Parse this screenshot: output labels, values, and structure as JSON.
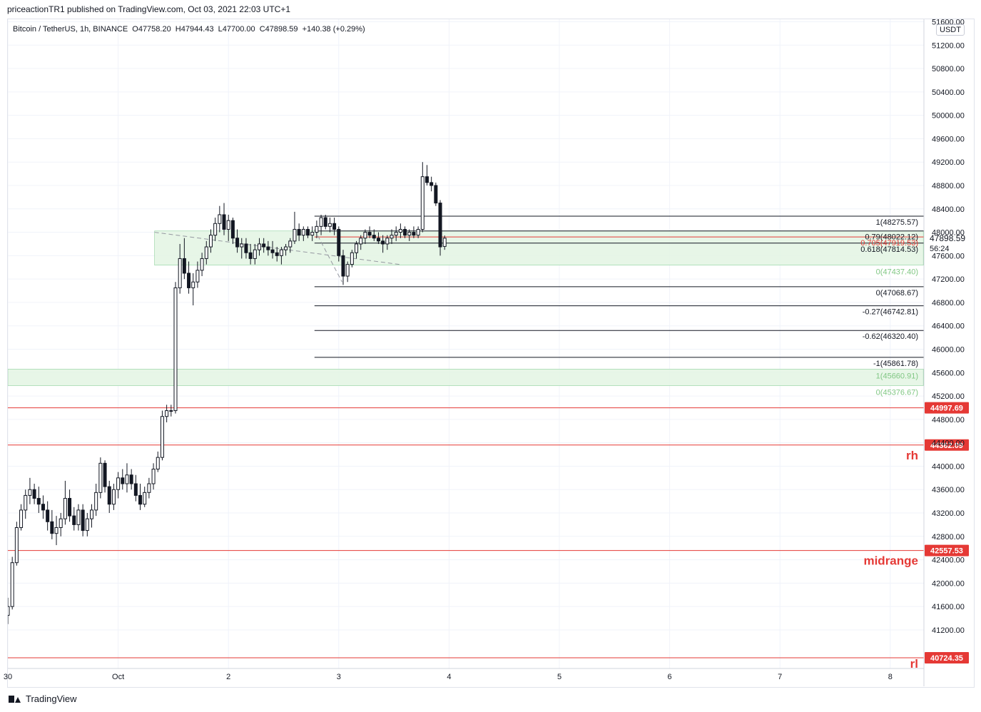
{
  "header": {
    "published": "priceactionTR1 published on TradingView.com, Oct 03, 2021 22:03 UTC+1"
  },
  "legend": {
    "symbol": "Bitcoin / TetherUS, 1h, BINANCE",
    "open": "O47758.20",
    "high": "H47944.43",
    "low": "L47700.00",
    "close": "C47898.59",
    "change": "+140.38 (+0.29%)"
  },
  "currency_badge": "USDT",
  "footer": {
    "brand": "TradingView"
  },
  "colors": {
    "up": "#131722",
    "down": "#131722",
    "zone_fill": "#e3f4e3",
    "zone_stroke": "#8fd19e",
    "red_level": "#e53935",
    "fib_text_green": "#81c784",
    "grid": "#f0f3fa"
  },
  "chart_data": {
    "type": "candlestick",
    "ylim": [
      40724.35,
      51600
    ],
    "xlim": [
      0,
      8.3
    ],
    "y_ticks": [
      41200,
      41600,
      42000,
      42400,
      42800,
      43200,
      43600,
      44000,
      44400,
      44800,
      45200,
      45600,
      46000,
      46400,
      46800,
      47200,
      47600,
      48000,
      48400,
      48800,
      49200,
      49600,
      50000,
      50400,
      50800,
      51200,
      51600
    ],
    "y_tick_labels": [
      "41200.00",
      "41600.00",
      "42000.00",
      "42400.00",
      "42800.00",
      "43200.00",
      "43600.00",
      "44000.00",
      "44400.00",
      "44800.00",
      "45200.00",
      "45600.00",
      "46000.00",
      "46400.00",
      "46800.00",
      "47200.00",
      "47600.00",
      "48000.00",
      "48400.00",
      "48800.00",
      "49200.00",
      "49600.00",
      "50000.00",
      "50400.00",
      "50800.00",
      "51200.00",
      "51600.00"
    ],
    "x_ticks": [
      {
        "x": 0,
        "label": "30"
      },
      {
        "x": 1,
        "label": "Oct"
      },
      {
        "x": 2,
        "label": "2"
      },
      {
        "x": 3,
        "label": "3"
      },
      {
        "x": 4,
        "label": "4"
      },
      {
        "x": 5,
        "label": "5"
      },
      {
        "x": 6,
        "label": "6"
      },
      {
        "x": 7,
        "label": "7"
      },
      {
        "x": 8,
        "label": "8"
      }
    ],
    "candles": [
      {
        "t": 0.0,
        "o": 41450,
        "h": 41750,
        "l": 41300,
        "c": 41600
      },
      {
        "t": 0.04,
        "o": 41600,
        "h": 42450,
        "l": 41550,
        "c": 42350
      },
      {
        "t": 0.08,
        "o": 42350,
        "h": 43050,
        "l": 42300,
        "c": 42950
      },
      {
        "t": 0.12,
        "o": 42950,
        "h": 43350,
        "l": 42900,
        "c": 43250
      },
      {
        "t": 0.16,
        "o": 43250,
        "h": 43600,
        "l": 43100,
        "c": 43500
      },
      {
        "t": 0.2,
        "o": 43500,
        "h": 43800,
        "l": 43350,
        "c": 43600
      },
      {
        "t": 0.24,
        "o": 43600,
        "h": 43700,
        "l": 43350,
        "c": 43450
      },
      {
        "t": 0.28,
        "o": 43450,
        "h": 43650,
        "l": 43200,
        "c": 43350
      },
      {
        "t": 0.32,
        "o": 43350,
        "h": 43500,
        "l": 43100,
        "c": 43250
      },
      {
        "t": 0.36,
        "o": 43250,
        "h": 43400,
        "l": 42900,
        "c": 43050
      },
      {
        "t": 0.4,
        "o": 43050,
        "h": 43250,
        "l": 42750,
        "c": 42850
      },
      {
        "t": 0.44,
        "o": 42850,
        "h": 43150,
        "l": 42650,
        "c": 42950
      },
      {
        "t": 0.48,
        "o": 42950,
        "h": 43200,
        "l": 42800,
        "c": 43100
      },
      {
        "t": 0.52,
        "o": 43100,
        "h": 43750,
        "l": 43000,
        "c": 43450
      },
      {
        "t": 0.56,
        "o": 43450,
        "h": 43600,
        "l": 43050,
        "c": 43150
      },
      {
        "t": 0.6,
        "o": 43150,
        "h": 43300,
        "l": 42900,
        "c": 43000
      },
      {
        "t": 0.64,
        "o": 43000,
        "h": 43350,
        "l": 42900,
        "c": 43250
      },
      {
        "t": 0.68,
        "o": 43250,
        "h": 43350,
        "l": 42800,
        "c": 42900
      },
      {
        "t": 0.72,
        "o": 42900,
        "h": 43200,
        "l": 42800,
        "c": 43100
      },
      {
        "t": 0.76,
        "o": 43100,
        "h": 43350,
        "l": 42950,
        "c": 43250
      },
      {
        "t": 0.8,
        "o": 43250,
        "h": 43700,
        "l": 43150,
        "c": 43550
      },
      {
        "t": 0.84,
        "o": 43550,
        "h": 44150,
        "l": 43450,
        "c": 44050
      },
      {
        "t": 0.88,
        "o": 44050,
        "h": 44100,
        "l": 43550,
        "c": 43650
      },
      {
        "t": 0.92,
        "o": 43650,
        "h": 43750,
        "l": 43200,
        "c": 43350
      },
      {
        "t": 0.96,
        "o": 43350,
        "h": 43700,
        "l": 43250,
        "c": 43600
      },
      {
        "t": 1.0,
        "o": 43600,
        "h": 43900,
        "l": 43450,
        "c": 43800
      },
      {
        "t": 1.04,
        "o": 43800,
        "h": 43950,
        "l": 43600,
        "c": 43700
      },
      {
        "t": 1.08,
        "o": 43700,
        "h": 44050,
        "l": 43550,
        "c": 43850
      },
      {
        "t": 1.12,
        "o": 43850,
        "h": 43950,
        "l": 43600,
        "c": 43700
      },
      {
        "t": 1.16,
        "o": 43700,
        "h": 43850,
        "l": 43400,
        "c": 43500
      },
      {
        "t": 1.2,
        "o": 43500,
        "h": 43700,
        "l": 43250,
        "c": 43350
      },
      {
        "t": 1.24,
        "o": 43350,
        "h": 43650,
        "l": 43300,
        "c": 43550
      },
      {
        "t": 1.28,
        "o": 43550,
        "h": 43800,
        "l": 43450,
        "c": 43700
      },
      {
        "t": 1.32,
        "o": 43700,
        "h": 44050,
        "l": 43600,
        "c": 43950
      },
      {
        "t": 1.36,
        "o": 43950,
        "h": 44250,
        "l": 43900,
        "c": 44150
      },
      {
        "t": 1.4,
        "o": 44150,
        "h": 44950,
        "l": 44100,
        "c": 44850
      },
      {
        "t": 1.44,
        "o": 44850,
        "h": 45050,
        "l": 44750,
        "c": 44950
      },
      {
        "t": 1.48,
        "o": 44950,
        "h": 45050,
        "l": 44850,
        "c": 44950
      },
      {
        "t": 1.52,
        "o": 44950,
        "h": 47150,
        "l": 44900,
        "c": 47050
      },
      {
        "t": 1.56,
        "o": 47050,
        "h": 47800,
        "l": 46950,
        "c": 47550
      },
      {
        "t": 1.6,
        "o": 47550,
        "h": 47900,
        "l": 47200,
        "c": 47300
      },
      {
        "t": 1.64,
        "o": 47300,
        "h": 47500,
        "l": 46950,
        "c": 47050
      },
      {
        "t": 1.68,
        "o": 47050,
        "h": 47300,
        "l": 46750,
        "c": 47150
      },
      {
        "t": 1.72,
        "o": 47150,
        "h": 47500,
        "l": 47050,
        "c": 47350
      },
      {
        "t": 1.76,
        "o": 47350,
        "h": 47650,
        "l": 47250,
        "c": 47550
      },
      {
        "t": 1.8,
        "o": 47550,
        "h": 47850,
        "l": 47450,
        "c": 47750
      },
      {
        "t": 1.84,
        "o": 47750,
        "h": 48050,
        "l": 47650,
        "c": 47950
      },
      {
        "t": 1.88,
        "o": 47950,
        "h": 48250,
        "l": 47850,
        "c": 48150
      },
      {
        "t": 1.92,
        "o": 48150,
        "h": 48450,
        "l": 48000,
        "c": 48300
      },
      {
        "t": 1.96,
        "o": 48300,
        "h": 48500,
        "l": 47950,
        "c": 48050
      },
      {
        "t": 2.0,
        "o": 48050,
        "h": 48300,
        "l": 47850,
        "c": 48200
      },
      {
        "t": 2.04,
        "o": 48200,
        "h": 48250,
        "l": 47800,
        "c": 47900
      },
      {
        "t": 2.08,
        "o": 47900,
        "h": 48050,
        "l": 47650,
        "c": 47750
      },
      {
        "t": 2.12,
        "o": 47750,
        "h": 47900,
        "l": 47550,
        "c": 47800
      },
      {
        "t": 2.16,
        "o": 47800,
        "h": 47900,
        "l": 47550,
        "c": 47650
      },
      {
        "t": 2.2,
        "o": 47650,
        "h": 47800,
        "l": 47450,
        "c": 47550
      },
      {
        "t": 2.24,
        "o": 47550,
        "h": 47800,
        "l": 47450,
        "c": 47700
      },
      {
        "t": 2.28,
        "o": 47700,
        "h": 47900,
        "l": 47600,
        "c": 47800
      },
      {
        "t": 2.32,
        "o": 47800,
        "h": 47900,
        "l": 47650,
        "c": 47750
      },
      {
        "t": 2.36,
        "o": 47750,
        "h": 47850,
        "l": 47600,
        "c": 47700
      },
      {
        "t": 2.4,
        "o": 47700,
        "h": 47850,
        "l": 47550,
        "c": 47650
      },
      {
        "t": 2.44,
        "o": 47650,
        "h": 47750,
        "l": 47500,
        "c": 47600
      },
      {
        "t": 2.48,
        "o": 47600,
        "h": 47750,
        "l": 47450,
        "c": 47700
      },
      {
        "t": 2.52,
        "o": 47700,
        "h": 47800,
        "l": 47600,
        "c": 47750
      },
      {
        "t": 2.56,
        "o": 47750,
        "h": 47900,
        "l": 47650,
        "c": 47850
      },
      {
        "t": 2.6,
        "o": 47850,
        "h": 48350,
        "l": 47800,
        "c": 48050
      },
      {
        "t": 2.64,
        "o": 48050,
        "h": 48150,
        "l": 47850,
        "c": 47950
      },
      {
        "t": 2.68,
        "o": 47950,
        "h": 48100,
        "l": 47850,
        "c": 48050
      },
      {
        "t": 2.72,
        "o": 48050,
        "h": 48100,
        "l": 47900,
        "c": 47950
      },
      {
        "t": 2.76,
        "o": 47950,
        "h": 48100,
        "l": 47850,
        "c": 48000
      },
      {
        "t": 2.8,
        "o": 48000,
        "h": 48200,
        "l": 47900,
        "c": 48100
      },
      {
        "t": 2.84,
        "o": 48100,
        "h": 48300,
        "l": 47950,
        "c": 48250
      },
      {
        "t": 2.88,
        "o": 48250,
        "h": 48300,
        "l": 48050,
        "c": 48100
      },
      {
        "t": 2.92,
        "o": 48100,
        "h": 48250,
        "l": 48000,
        "c": 48150
      },
      {
        "t": 2.96,
        "o": 48150,
        "h": 48250,
        "l": 47950,
        "c": 48050
      },
      {
        "t": 3.0,
        "o": 48050,
        "h": 48100,
        "l": 47500,
        "c": 47600
      },
      {
        "t": 3.04,
        "o": 47600,
        "h": 47700,
        "l": 47100,
        "c": 47250
      },
      {
        "t": 3.08,
        "o": 47250,
        "h": 47500,
        "l": 47150,
        "c": 47450
      },
      {
        "t": 3.12,
        "o": 47450,
        "h": 47700,
        "l": 47400,
        "c": 47650
      },
      {
        "t": 3.16,
        "o": 47650,
        "h": 47850,
        "l": 47550,
        "c": 47800
      },
      {
        "t": 3.2,
        "o": 47800,
        "h": 47950,
        "l": 47700,
        "c": 47900
      },
      {
        "t": 3.24,
        "o": 47900,
        "h": 48050,
        "l": 47800,
        "c": 48000
      },
      {
        "t": 3.28,
        "o": 48000,
        "h": 48100,
        "l": 47900,
        "c": 47950
      },
      {
        "t": 3.32,
        "o": 47950,
        "h": 48050,
        "l": 47850,
        "c": 47900
      },
      {
        "t": 3.36,
        "o": 47900,
        "h": 48000,
        "l": 47800,
        "c": 47850
      },
      {
        "t": 3.4,
        "o": 47850,
        "h": 47950,
        "l": 47650,
        "c": 47800
      },
      {
        "t": 3.44,
        "o": 47800,
        "h": 47950,
        "l": 47700,
        "c": 47900
      },
      {
        "t": 3.48,
        "o": 47900,
        "h": 48050,
        "l": 47800,
        "c": 47950
      },
      {
        "t": 3.52,
        "o": 47950,
        "h": 48100,
        "l": 47850,
        "c": 48000
      },
      {
        "t": 3.56,
        "o": 48000,
        "h": 48150,
        "l": 47900,
        "c": 48050
      },
      {
        "t": 3.6,
        "o": 48050,
        "h": 48100,
        "l": 47900,
        "c": 47950
      },
      {
        "t": 3.64,
        "o": 47950,
        "h": 48050,
        "l": 47850,
        "c": 48000
      },
      {
        "t": 3.68,
        "o": 48000,
        "h": 48100,
        "l": 47900,
        "c": 47950
      },
      {
        "t": 3.72,
        "o": 47950,
        "h": 48100,
        "l": 47900,
        "c": 48050
      },
      {
        "t": 3.76,
        "o": 48050,
        "h": 49200,
        "l": 48000,
        "c": 48950
      },
      {
        "t": 3.8,
        "o": 48950,
        "h": 49150,
        "l": 48800,
        "c": 48850
      },
      {
        "t": 3.84,
        "o": 48850,
        "h": 48950,
        "l": 48700,
        "c": 48800
      },
      {
        "t": 3.88,
        "o": 48800,
        "h": 48850,
        "l": 48450,
        "c": 48500
      },
      {
        "t": 3.92,
        "o": 48500,
        "h": 48550,
        "l": 47600,
        "c": 47750
      },
      {
        "t": 3.96,
        "o": 47758.2,
        "h": 47944.43,
        "l": 47700,
        "c": 47898.59
      }
    ],
    "zones": [
      {
        "x0": 1.33,
        "x1": 8.3,
        "y0": 47437.4,
        "y1": 48022.12
      },
      {
        "x0": 0.0,
        "x1": 8.3,
        "y0": 45376.67,
        "y1": 45660.91
      }
    ],
    "fib_lines": [
      {
        "x0": 2.78,
        "x1": 8.3,
        "y": 48275.57,
        "label": "1(48275.57)",
        "color": "#131722"
      },
      {
        "x0": 2.78,
        "x1": 8.3,
        "y": 48022.12,
        "label": "0.79(48022.12)",
        "color": "#131722"
      },
      {
        "x0": 2.78,
        "x1": 8.3,
        "y": 47919.53,
        "label": "0.705(47919.53)",
        "color": "#e53935"
      },
      {
        "x0": 2.78,
        "x1": 8.3,
        "y": 47814.53,
        "label": "0.618(47814.53)",
        "color": "#131722"
      },
      {
        "x0": 2.78,
        "x1": 8.3,
        "y": 47437.4,
        "label": "0(47437.40)",
        "color": "#81c784"
      },
      {
        "x0": 2.78,
        "x1": 8.3,
        "y": 47068.67,
        "label": "0(47068.67)",
        "color": "#131722"
      },
      {
        "x0": 2.78,
        "x1": 8.3,
        "y": 46742.81,
        "label": "-0.27(46742.81)",
        "color": "#131722"
      },
      {
        "x0": 2.78,
        "x1": 8.3,
        "y": 46320.4,
        "label": "-0.62(46320.40)",
        "color": "#131722"
      },
      {
        "x0": 2.78,
        "x1": 8.3,
        "y": 45861.78,
        "label": "-1(45861.78)",
        "color": "#131722"
      },
      {
        "x0": 2.78,
        "x1": 8.3,
        "y": 45660.91,
        "label": "1(45660.91)",
        "color": "#81c784"
      },
      {
        "x0": 2.78,
        "x1": 8.3,
        "y": 45376.67,
        "label": "0(45376.67)",
        "color": "#81c784"
      }
    ],
    "red_levels": [
      {
        "y": 44997.69,
        "label": "44997.69",
        "text": ""
      },
      {
        "y": 44362.09,
        "label": "44362.09",
        "text": "rh"
      },
      {
        "y": 42557.53,
        "label": "42557.53",
        "text": "midrange"
      },
      {
        "y": 40724.35,
        "label": "40724.35",
        "text": "rl"
      }
    ],
    "dashed_lines": [
      {
        "x0": 1.33,
        "y0": 48000,
        "x1": 3.55,
        "y1": 47450
      },
      {
        "x0": 2.78,
        "y0": 48050,
        "x1": 3.03,
        "y1": 47150
      }
    ],
    "current_price": {
      "value": 47898.59,
      "label": "47898.59",
      "countdown": "56:24"
    }
  }
}
